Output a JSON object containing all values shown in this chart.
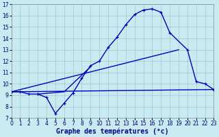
{
  "title": "Graphe des températures (°c)",
  "bg_color": "#c8eaf0",
  "grid_color": "#a0c8d0",
  "line_color": "#0000bb",
  "xlim": [
    0,
    23
  ],
  "ylim": [
    7,
    17
  ],
  "xlabel_fontsize": 7.0,
  "tick_fontsize": 5.5,
  "linewidth": 1.0,
  "markersize": 3.5,
  "series1_x": [
    0,
    1,
    2,
    3,
    4,
    5,
    6,
    7,
    8,
    9,
    10,
    11,
    12,
    13,
    14,
    15,
    16,
    17,
    18,
    20,
    21,
    22,
    23
  ],
  "series1_y": [
    9.3,
    9.3,
    9.1,
    9.1,
    8.8,
    7.4,
    8.3,
    9.2,
    10.5,
    11.6,
    12.0,
    13.2,
    14.1,
    15.2,
    16.1,
    16.5,
    16.6,
    16.3,
    14.5,
    13.0,
    10.2,
    10.0,
    9.5
  ],
  "series2_x": [
    0,
    19
  ],
  "series2_y": [
    9.3,
    13.0
  ],
  "series3_x": [
    0,
    23
  ],
  "series3_y": [
    9.3,
    9.5
  ],
  "series4_x": [
    3,
    6,
    9
  ],
  "series4_y": [
    9.1,
    9.3,
    11.5
  ]
}
